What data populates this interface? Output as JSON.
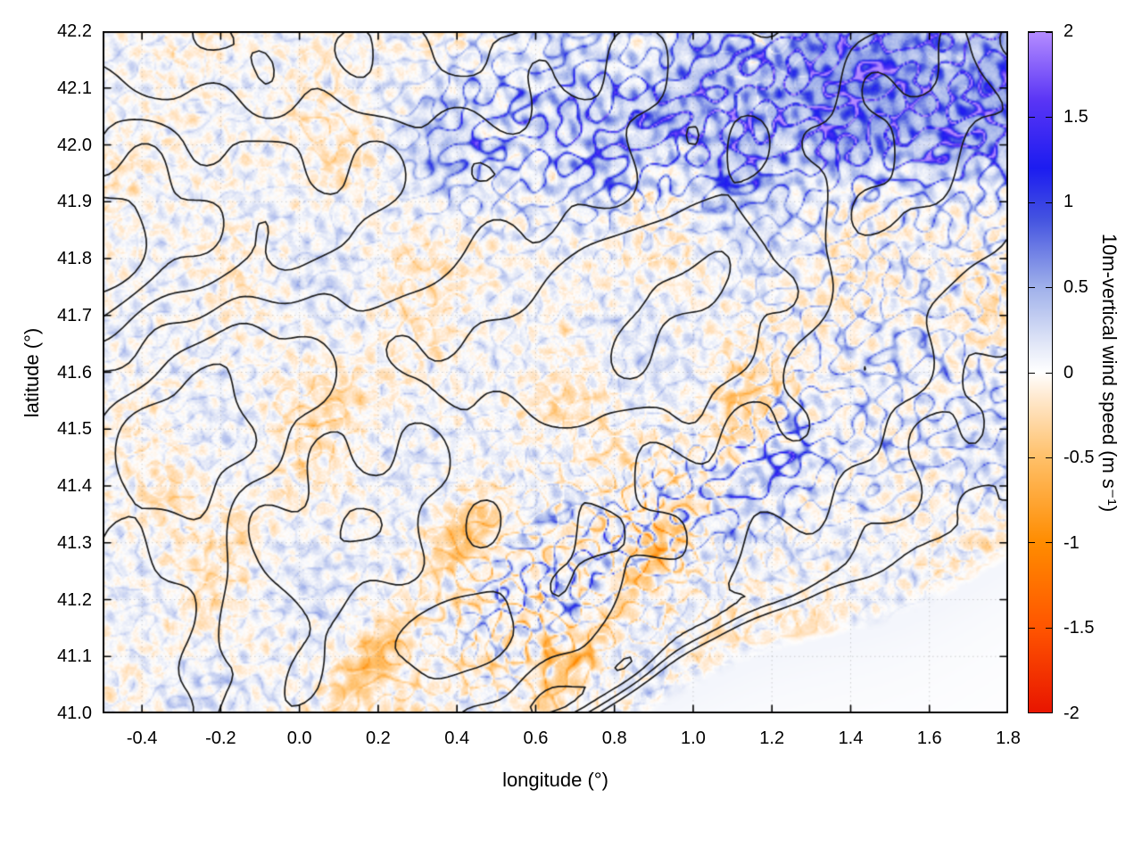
{
  "figure": {
    "background": "#ffffff"
  },
  "chart_data": {
    "type": "heatmap",
    "title": "",
    "xlabel": "longitude (°)",
    "ylabel": "latitude (°)",
    "colorbar_label": "10m-vertical wind speed (m s⁻¹)",
    "x_range": [
      -0.5,
      1.8
    ],
    "y_range": [
      41.0,
      42.2
    ],
    "x_ticks": [
      -0.4,
      -0.2,
      0.0,
      0.2,
      0.4,
      0.6,
      0.8,
      1.0,
      1.2,
      1.4,
      1.6,
      1.8
    ],
    "x_tick_labels": [
      "-0.4",
      "-0.2",
      "0.0",
      "0.2",
      "0.4",
      "0.6",
      "0.8",
      "1.0",
      "1.2",
      "1.4",
      "1.6",
      "1.8"
    ],
    "y_ticks": [
      41.0,
      41.1,
      41.2,
      41.3,
      41.4,
      41.5,
      41.6,
      41.7,
      41.8,
      41.9,
      42.0,
      42.1,
      42.2
    ],
    "y_tick_labels": [
      "41.0",
      "41.1",
      "41.2",
      "41.3",
      "41.4",
      "41.5",
      "41.6",
      "41.7",
      "41.8",
      "41.9",
      "42.0",
      "42.1",
      "42.2"
    ],
    "colorbar_range": [
      -2,
      2
    ],
    "colorbar_ticks": [
      -2,
      -1.5,
      -1,
      -0.5,
      0,
      0.5,
      1,
      1.5,
      2
    ],
    "colorbar_tick_labels": [
      "-2",
      "-1.5",
      "-1",
      "-0.5",
      "0",
      "0.5",
      "1",
      "1.5",
      "2"
    ],
    "colormap_stops": [
      {
        "value": -2.0,
        "color": "#e81500"
      },
      {
        "value": -1.5,
        "color": "#ff5500"
      },
      {
        "value": -1.0,
        "color": "#ff8c00"
      },
      {
        "value": -0.5,
        "color": "#ffc069"
      },
      {
        "value": -0.15,
        "color": "#ffe9cf"
      },
      {
        "value": 0.0,
        "color": "#ffffff"
      },
      {
        "value": 0.15,
        "color": "#e4e9f8"
      },
      {
        "value": 0.5,
        "color": "#9fb0ea"
      },
      {
        "value": 0.9,
        "color": "#4453e0"
      },
      {
        "value": 1.2,
        "color": "#1c1cf0"
      },
      {
        "value": 1.6,
        "color": "#5a35f5"
      },
      {
        "value": 2.0,
        "color": "#b48cff"
      }
    ],
    "grid": true,
    "contour_color": "#1c1c1c",
    "frame_color": "#000000",
    "overlay": "black terrain-elevation contour lines over the wind-speed field",
    "field_features": [
      {
        "name": "strong-updrafts-northeast",
        "lon": [
          1.0,
          1.8
        ],
        "lat": [
          41.95,
          42.2
        ],
        "peak_value": 1.8
      },
      {
        "name": "updraft-band-north",
        "lon": [
          0.35,
          1.05
        ],
        "lat": [
          41.9,
          42.15
        ],
        "peak_value": 1.2
      },
      {
        "name": "mountain-wave-band-south",
        "lon": [
          0.5,
          1.25
        ],
        "lat": [
          41.15,
          41.5
        ],
        "peak_value": 1.5
      },
      {
        "name": "downdraft-patches-south-central",
        "lon": [
          0.45,
          1.15
        ],
        "lat": [
          41.05,
          41.45
        ],
        "peak_value": -1.0
      },
      {
        "name": "calm-sea-southeast",
        "lon": [
          0.95,
          1.8
        ],
        "lat": [
          41.0,
          41.3
        ],
        "peak_value": 0.0
      },
      {
        "name": "weak-speckle-background",
        "lon": [
          -0.5,
          1.8
        ],
        "lat": [
          41.0,
          42.2
        ],
        "peak_value": 0.3
      }
    ]
  }
}
